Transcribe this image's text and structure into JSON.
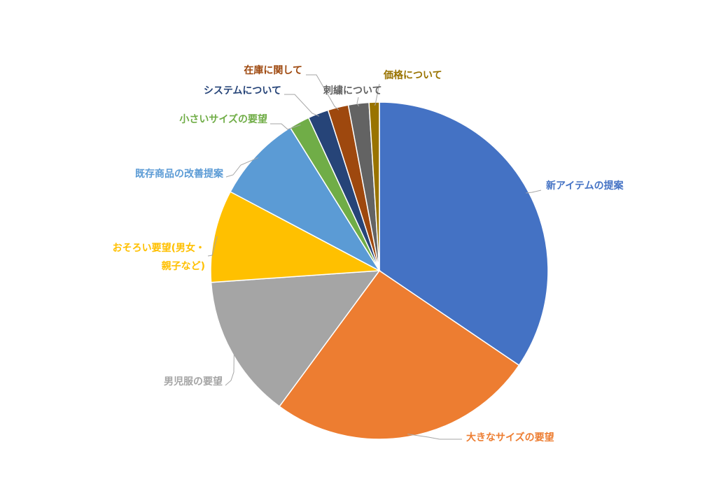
{
  "chart_data": {
    "type": "pie",
    "title": "",
    "categories": [
      "新アイテムの提案",
      "大きなサイズの要望",
      "男児服の要望",
      "おそろい要望(男女・親子など)",
      "既存商品の改善提案",
      "小さいサイズの要望",
      "システムについて",
      "在庫に関して",
      "刺繍について",
      "価格について"
    ],
    "label_lines": [
      [
        "新アイテムの提案"
      ],
      [
        "大きなサイズの要望"
      ],
      [
        "男児服の要望"
      ],
      [
        "おそろい要望(男女・",
        "親子など)"
      ],
      [
        "既存商品の改善提案"
      ],
      [
        "小さいサイズの要望"
      ],
      [
        "システムについて"
      ],
      [
        "在庫に関して"
      ],
      [
        "刺繍について"
      ],
      [
        "価格について"
      ]
    ],
    "values": [
      35.0,
      26.0,
      14.0,
      9.0,
      8.5,
      2.0,
      2.0,
      2.0,
      2.0,
      1.0
    ],
    "unit": "%",
    "colors": [
      "#4472C4",
      "#ED7D31",
      "#A5A5A5",
      "#FFC000",
      "#5B9BD5",
      "#70AD47",
      "#264478",
      "#9E480E",
      "#636363",
      "#997300"
    ],
    "label_colors": [
      "#4472C4",
      "#ED7D31",
      "#A5A5A5",
      "#FFC000",
      "#5B9BD5",
      "#70AD47",
      "#264478",
      "#9E480E",
      "#636363",
      "#997300"
    ],
    "start_angle": "12 o'clock",
    "direction": "clockwise",
    "legend": "none",
    "data_labels": "category names outside with leader lines"
  }
}
